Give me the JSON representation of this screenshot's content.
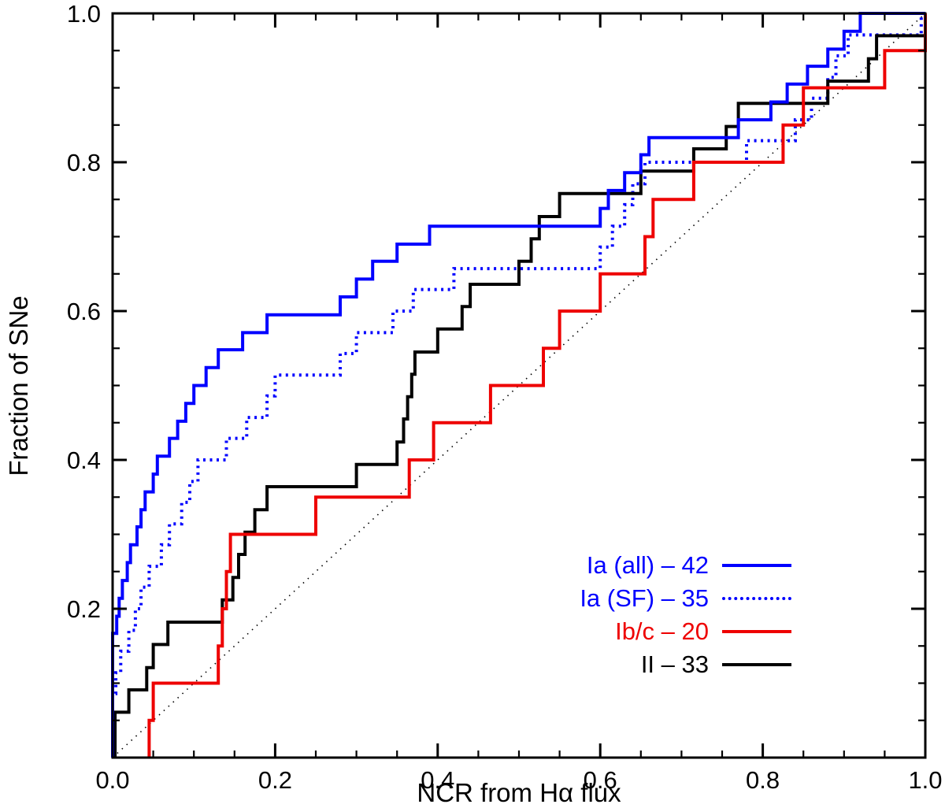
{
  "chart_data": {
    "type": "line",
    "subtype": "cumulative_step",
    "title": "",
    "xlabel": "NCR from Hα flux",
    "ylabel": "Fraction of SNe",
    "xlim": [
      0.0,
      1.0
    ],
    "ylim": [
      0.0,
      1.0
    ],
    "grid": false,
    "x_major_ticks": [
      0.0,
      0.2,
      0.4,
      0.6,
      0.8,
      1.0
    ],
    "x_tick_labels": [
      "0.0",
      "0.2",
      "0.4",
      "0.6",
      "0.8",
      "1.0"
    ],
    "y_major_ticks": [
      0.2,
      0.4,
      0.6,
      0.8,
      1.0
    ],
    "y_tick_labels": [
      "0.2",
      "0.4",
      "0.6",
      "0.8",
      "1.0"
    ],
    "minor_tick_step": 0.05,
    "reference_line": {
      "name": "one-to-one diagonal",
      "style": "dotted",
      "color": "#000000",
      "from": [
        0.0,
        0.0
      ],
      "to": [
        1.0,
        1.0
      ]
    },
    "series": [
      {
        "name": "Ia (all)",
        "count": 42,
        "color": "#0000ff",
        "line_style": "solid",
        "points": [
          [
            0.0,
            0.167
          ],
          [
            0.005,
            0.19
          ],
          [
            0.008,
            0.214
          ],
          [
            0.012,
            0.238
          ],
          [
            0.018,
            0.262
          ],
          [
            0.022,
            0.286
          ],
          [
            0.03,
            0.31
          ],
          [
            0.035,
            0.333
          ],
          [
            0.04,
            0.357
          ],
          [
            0.05,
            0.381
          ],
          [
            0.055,
            0.405
          ],
          [
            0.07,
            0.429
          ],
          [
            0.08,
            0.452
          ],
          [
            0.09,
            0.476
          ],
          [
            0.1,
            0.5
          ],
          [
            0.115,
            0.524
          ],
          [
            0.13,
            0.548
          ],
          [
            0.16,
            0.571
          ],
          [
            0.19,
            0.595
          ],
          [
            0.28,
            0.619
          ],
          [
            0.3,
            0.643
          ],
          [
            0.32,
            0.667
          ],
          [
            0.35,
            0.69
          ],
          [
            0.39,
            0.714
          ],
          [
            0.6,
            0.738
          ],
          [
            0.61,
            0.762
          ],
          [
            0.63,
            0.786
          ],
          [
            0.65,
            0.81
          ],
          [
            0.66,
            0.833
          ],
          [
            0.77,
            0.857
          ],
          [
            0.81,
            0.881
          ],
          [
            0.83,
            0.905
          ],
          [
            0.855,
            0.929
          ],
          [
            0.88,
            0.952
          ],
          [
            0.9,
            0.976
          ],
          [
            0.92,
            1.0
          ]
        ]
      },
      {
        "name": "Ia (SF)",
        "count": 35,
        "color": "#0000ff",
        "line_style": "dotted",
        "points": [
          [
            0.0,
            0.086
          ],
          [
            0.004,
            0.114
          ],
          [
            0.01,
            0.143
          ],
          [
            0.02,
            0.171
          ],
          [
            0.028,
            0.2
          ],
          [
            0.035,
            0.229
          ],
          [
            0.045,
            0.257
          ],
          [
            0.06,
            0.286
          ],
          [
            0.07,
            0.314
          ],
          [
            0.085,
            0.343
          ],
          [
            0.095,
            0.371
          ],
          [
            0.105,
            0.4
          ],
          [
            0.14,
            0.429
          ],
          [
            0.165,
            0.457
          ],
          [
            0.19,
            0.486
          ],
          [
            0.2,
            0.514
          ],
          [
            0.28,
            0.543
          ],
          [
            0.3,
            0.571
          ],
          [
            0.345,
            0.6
          ],
          [
            0.37,
            0.629
          ],
          [
            0.42,
            0.657
          ],
          [
            0.6,
            0.686
          ],
          [
            0.615,
            0.714
          ],
          [
            0.63,
            0.743
          ],
          [
            0.64,
            0.771
          ],
          [
            0.655,
            0.8
          ],
          [
            0.78,
            0.829
          ],
          [
            0.84,
            0.857
          ],
          [
            0.86,
            0.886
          ],
          [
            0.88,
            0.914
          ],
          [
            0.89,
            0.943
          ],
          [
            0.905,
            0.971
          ],
          [
            0.995,
            1.0
          ]
        ]
      },
      {
        "name": "Ib/c",
        "count": 20,
        "color": "#ee0000",
        "line_style": "solid",
        "points": [
          [
            0.045,
            0.05
          ],
          [
            0.05,
            0.1
          ],
          [
            0.13,
            0.15
          ],
          [
            0.135,
            0.2
          ],
          [
            0.14,
            0.25
          ],
          [
            0.145,
            0.3
          ],
          [
            0.25,
            0.35
          ],
          [
            0.365,
            0.4
          ],
          [
            0.395,
            0.45
          ],
          [
            0.465,
            0.5
          ],
          [
            0.53,
            0.55
          ],
          [
            0.55,
            0.6
          ],
          [
            0.6,
            0.65
          ],
          [
            0.655,
            0.7
          ],
          [
            0.665,
            0.75
          ],
          [
            0.715,
            0.8
          ],
          [
            0.825,
            0.85
          ],
          [
            0.85,
            0.9
          ],
          [
            0.95,
            0.95
          ],
          [
            1.0,
            1.0
          ]
        ]
      },
      {
        "name": "II",
        "count": 33,
        "color": "#000000",
        "line_style": "solid",
        "points": [
          [
            0.003,
            0.061
          ],
          [
            0.02,
            0.091
          ],
          [
            0.042,
            0.121
          ],
          [
            0.05,
            0.152
          ],
          [
            0.068,
            0.182
          ],
          [
            0.135,
            0.212
          ],
          [
            0.148,
            0.242
          ],
          [
            0.155,
            0.273
          ],
          [
            0.163,
            0.303
          ],
          [
            0.175,
            0.333
          ],
          [
            0.19,
            0.364
          ],
          [
            0.3,
            0.394
          ],
          [
            0.35,
            0.424
          ],
          [
            0.358,
            0.455
          ],
          [
            0.363,
            0.485
          ],
          [
            0.368,
            0.515
          ],
          [
            0.372,
            0.545
          ],
          [
            0.4,
            0.576
          ],
          [
            0.43,
            0.606
          ],
          [
            0.44,
            0.636
          ],
          [
            0.5,
            0.667
          ],
          [
            0.515,
            0.697
          ],
          [
            0.525,
            0.727
          ],
          [
            0.55,
            0.758
          ],
          [
            0.65,
            0.788
          ],
          [
            0.715,
            0.818
          ],
          [
            0.755,
            0.848
          ],
          [
            0.77,
            0.879
          ],
          [
            0.88,
            0.909
          ],
          [
            0.93,
            0.939
          ],
          [
            0.94,
            0.97
          ],
          [
            1.0,
            1.0
          ]
        ]
      }
    ],
    "legend": {
      "position": "bottom-right",
      "entries": [
        {
          "label": "Ia (all) – 42",
          "color": "#0000ff",
          "line_style": "solid"
        },
        {
          "label": "Ia (SF) – 35",
          "color": "#0000ff",
          "line_style": "dotted"
        },
        {
          "label": "Ib/c – 20",
          "color": "#ee0000",
          "line_style": "solid"
        },
        {
          "label": "II – 33",
          "color": "#000000",
          "line_style": "solid"
        }
      ]
    }
  }
}
